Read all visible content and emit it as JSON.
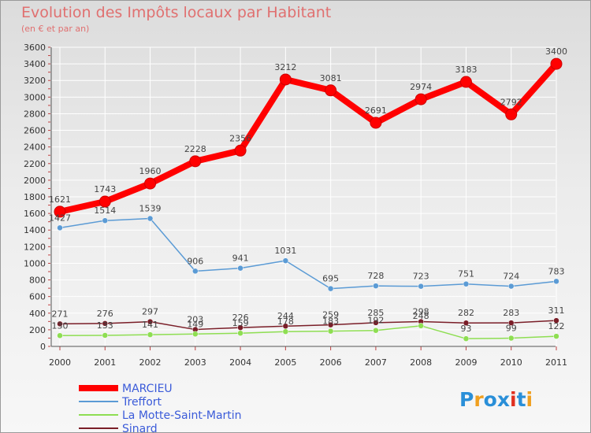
{
  "chart_data": {
    "type": "line",
    "title": "Evolution des Impôts locaux par Habitant",
    "subtitle": "(en € et par an)",
    "categories": [
      "2000",
      "2001",
      "2002",
      "2003",
      "2004",
      "2005",
      "2006",
      "2007",
      "2008",
      "2009",
      "2010",
      "2011"
    ],
    "ylim": [
      0,
      3600
    ],
    "yticks": [
      "0",
      "200",
      "400",
      "600",
      "800",
      "1000",
      "1200",
      "1400",
      "1600",
      "1800",
      "2000",
      "2200",
      "2400",
      "2600",
      "2800",
      "3000",
      "3200",
      "3400",
      "3600"
    ],
    "series": [
      {
        "name": "MARCIEU",
        "color": "#ff0000",
        "values": [
          1621,
          1743,
          1960,
          2228,
          2356,
          3212,
          3081,
          2691,
          2974,
          3183,
          2792,
          3400
        ]
      },
      {
        "name": "Treffort",
        "color": "#5b9bd5",
        "values": [
          1427,
          1514,
          1539,
          906,
          941,
          1031,
          695,
          728,
          723,
          751,
          724,
          783
        ]
      },
      {
        "name": "La Motte-Saint-Martin",
        "color": "#8ede52",
        "values": [
          130,
          133,
          141,
          149,
          159,
          178,
          183,
          192,
          248,
          93,
          99,
          122
        ]
      },
      {
        "name": "Sinard",
        "color": "#7a1e28",
        "values": [
          271,
          276,
          297,
          203,
          226,
          244,
          259,
          285,
          298,
          282,
          283,
          311
        ]
      }
    ]
  },
  "logo": {
    "text": "Proxiti",
    "letters": [
      "P",
      "r",
      "o",
      "x",
      "i",
      "t",
      "i"
    ],
    "colors": [
      "#2a8fd8",
      "#f0a020",
      "#2a8fd8",
      "#2a8fd8",
      "#e03020",
      "#2a8fd8",
      "#f0a020"
    ]
  }
}
